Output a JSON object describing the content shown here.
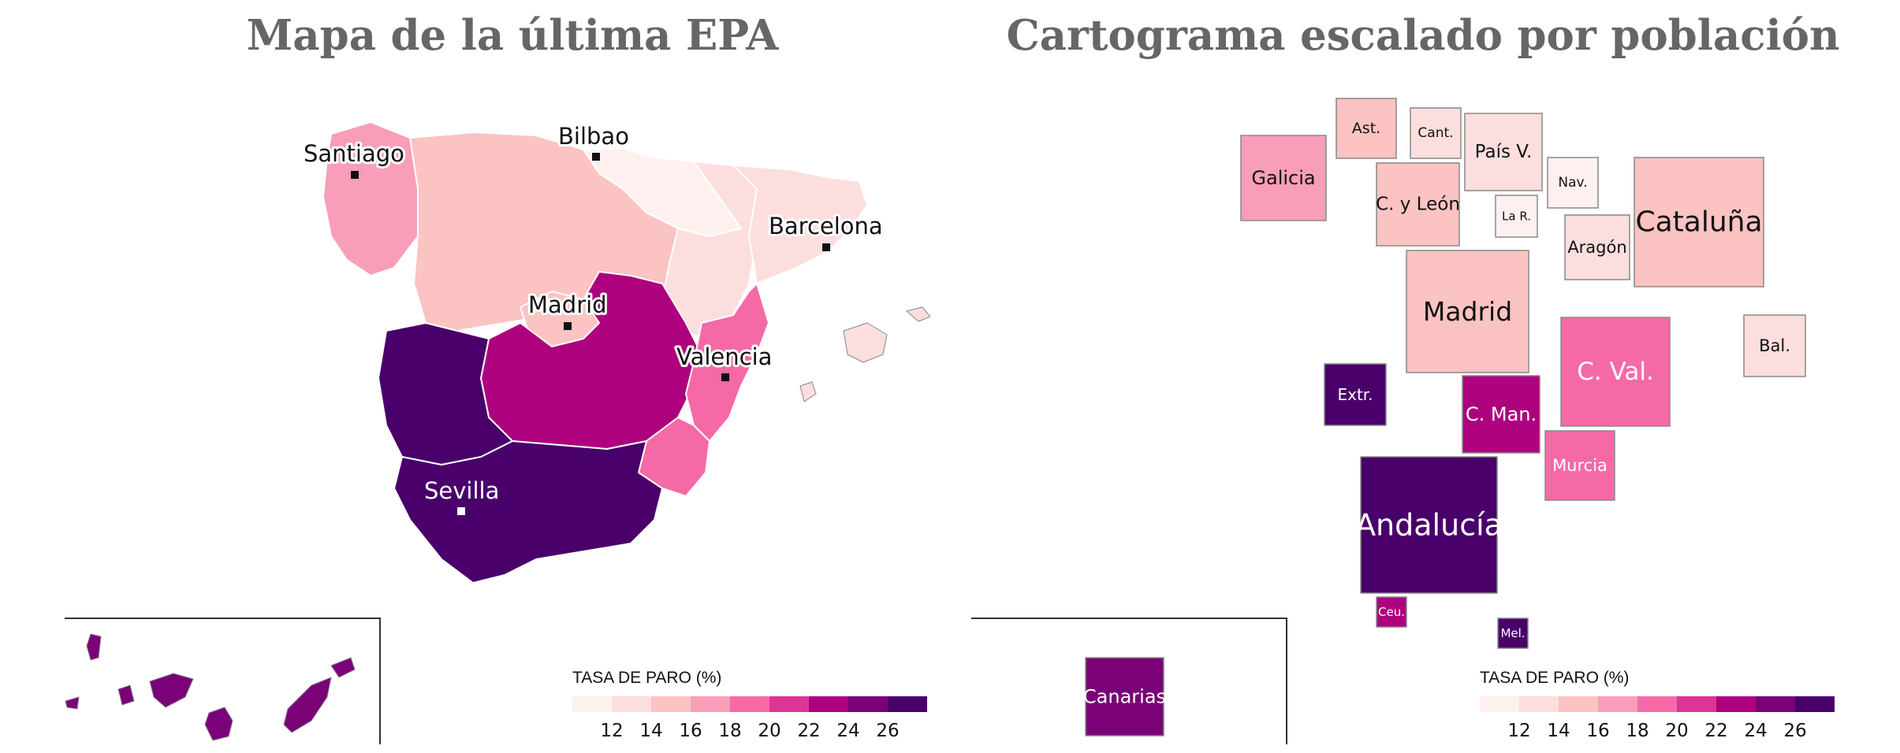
{
  "titles": {
    "left": "Mapa de la última EPA",
    "right": "Cartograma escalado por población"
  },
  "legend": {
    "title": "TASA DE PARO (%)",
    "ticks": [
      "12",
      "14",
      "16",
      "18",
      "20",
      "22",
      "24",
      "26"
    ],
    "colors": [
      "#fff0f0",
      "#fddede",
      "#fbc3c2",
      "#f99eb8",
      "#f56aa6",
      "#dd3497",
      "#ae017e",
      "#7a0177",
      "#49006a"
    ]
  },
  "cities": [
    {
      "name": "Santiago"
    },
    {
      "name": "Bilbao"
    },
    {
      "name": "Barcelona"
    },
    {
      "name": "Madrid"
    },
    {
      "name": "Valencia"
    },
    {
      "name": "Sevilla"
    }
  ],
  "regions": [
    {
      "label": "Galicia",
      "color": "#f99eb8"
    },
    {
      "label": "Ast.",
      "color": "#fbc3c2"
    },
    {
      "label": "Cant.",
      "color": "#fddede"
    },
    {
      "label": "País V.",
      "color": "#fddede"
    },
    {
      "label": "Nav.",
      "color": "#fff0f0"
    },
    {
      "label": "C. y León",
      "color": "#fbc3c2"
    },
    {
      "label": "La R.",
      "color": "#fff0f0"
    },
    {
      "label": "Aragón",
      "color": "#fddede"
    },
    {
      "label": "Cataluña",
      "color": "#fbc3c2"
    },
    {
      "label": "Madrid",
      "color": "#fbc3c2"
    },
    {
      "label": "Bal.",
      "color": "#fddede"
    },
    {
      "label": "Extr.",
      "color": "#49006a"
    },
    {
      "label": "C. Val.",
      "color": "#f56aa6"
    },
    {
      "label": "C. Man.",
      "color": "#ae017e"
    },
    {
      "label": "Murcia",
      "color": "#f56aa6"
    },
    {
      "label": "Andalucía",
      "color": "#49006a"
    },
    {
      "label": "Ceu.",
      "color": "#ae017e"
    },
    {
      "label": "Mel.",
      "color": "#49006a"
    },
    {
      "label": "Canarias",
      "color": "#7a0177"
    }
  ]
}
